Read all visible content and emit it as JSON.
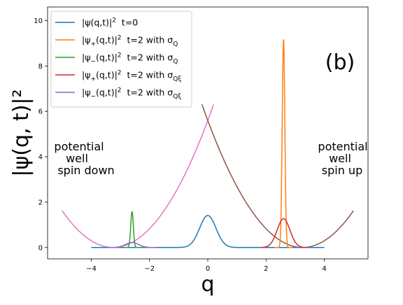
{
  "chart_data": {
    "type": "line",
    "panel_label": "(b)",
    "xlabel": "q",
    "ylabel": "|ψ(q, t)|²",
    "xlim": [
      -5.5,
      5.5
    ],
    "ylim": [
      -0.5,
      10.6
    ],
    "xticks": [
      {
        "value": -4,
        "label": "−4"
      },
      {
        "value": -2,
        "label": "−2"
      },
      {
        "value": 0,
        "label": "0"
      },
      {
        "value": 2,
        "label": "2"
      },
      {
        "value": 4,
        "label": "4"
      }
    ],
    "yticks": [
      {
        "value": 0,
        "label": "0"
      },
      {
        "value": 2,
        "label": "2"
      },
      {
        "value": 4,
        "label": "4"
      },
      {
        "value": 6,
        "label": "6"
      },
      {
        "value": 8,
        "label": "8"
      },
      {
        "value": 10,
        "label": "10"
      }
    ],
    "grid": false,
    "legend_position": "top-left",
    "series": [
      {
        "legend": [
          "|ψ(q,t)|",
          "2",
          "  t=0",
          ""
        ],
        "color": "#1f77b4",
        "kind": "gauss",
        "center": 0,
        "sigma": 0.28,
        "amp": 1.41,
        "xrange": [
          -4,
          4
        ]
      },
      {
        "legend": [
          "|ψ",
          "+",
          "(q,t)|",
          "2",
          "  t=2 with σ",
          "Q"
        ],
        "color": "#ff7f0e",
        "kind": "gauss",
        "center": 2.6,
        "sigma": 0.045,
        "amp": 9.15,
        "xrange": [
          2.3,
          2.9
        ]
      },
      {
        "legend": [
          "|ψ",
          "−",
          "(q,t)|",
          "2",
          "  t=2 with σ",
          "Q"
        ],
        "color": "#2ca02c",
        "kind": "gauss",
        "center": -2.6,
        "sigma": 0.045,
        "amp": 1.58,
        "xrange": [
          -2.9,
          -2.3
        ]
      },
      {
        "legend": [
          "|ψ",
          "+",
          "(q,t)|",
          "2",
          "  t=2 with σ",
          "Qξ"
        ],
        "color": "#d62728",
        "kind": "gauss",
        "center": 2.6,
        "sigma": 0.22,
        "amp": 1.27,
        "xrange": [
          1.8,
          3.4
        ]
      },
      {
        "legend": [
          "|ψ",
          "−",
          "(q,t)|",
          "2",
          "  t=2 with σ",
          "Qξ"
        ],
        "color": "#9467bd",
        "kind": "gauss",
        "center": -2.6,
        "sigma": 0.22,
        "amp": 0.22,
        "xrange": [
          -3.4,
          -1.8
        ]
      },
      {
        "legend": null,
        "color": "#e377c2",
        "kind": "parabola",
        "center": -3.25,
        "coef": 0.53,
        "xrange": [
          -5,
          0.2
        ]
      },
      {
        "legend": null,
        "color": "#8c564b",
        "kind": "parabola",
        "center": 3.25,
        "coef": 0.53,
        "xrange": [
          -0.2,
          5
        ]
      }
    ],
    "annotations": [
      {
        "lines": [
          "potential",
          "well",
          "spin down"
        ]
      },
      {
        "lines": [
          "potential",
          "well",
          "spin up"
        ]
      }
    ]
  }
}
